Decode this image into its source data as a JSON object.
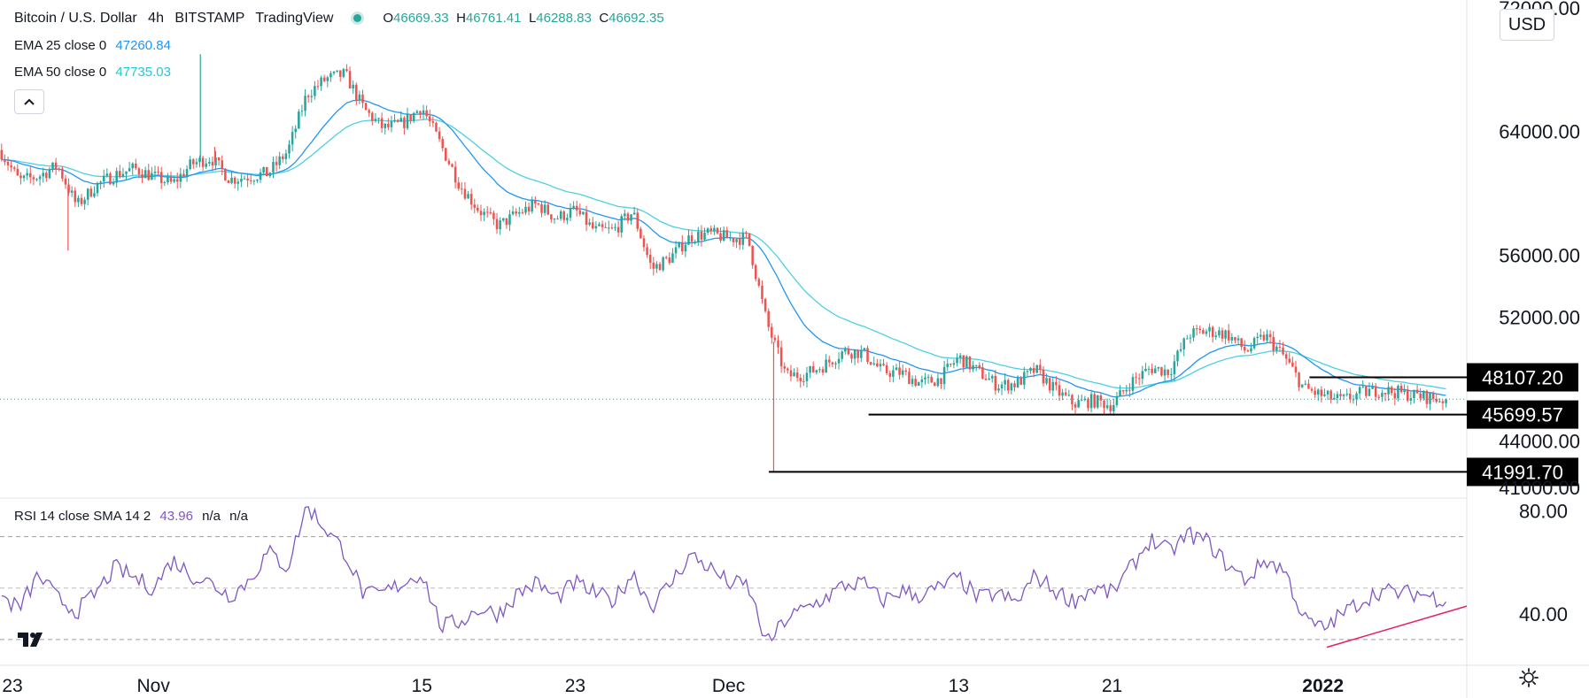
{
  "legend": {
    "pair": "Bitcoin / U.S. Dollar",
    "interval": "4h",
    "exchange": "BITSTAMP",
    "source": "TradingView",
    "open_label": "O",
    "open": "46669.33",
    "high_label": "H",
    "high": "46761.41",
    "low_label": "L",
    "low": "46288.83",
    "close_label": "C",
    "close": "46692.35",
    "ema25_label": "EMA 25 close 0",
    "ema25_value": "47260.84",
    "ema50_label": "EMA 50 close 0",
    "ema50_value": "47735.03",
    "rsi_label": "RSI 14 close SMA 14 2",
    "rsi_value": "43.96",
    "rsi_na1": "n/a",
    "rsi_na2": "n/a"
  },
  "currency_button": "USD",
  "colors": {
    "up": "#26a69a",
    "down": "#ef5350",
    "ema25": "#2196f3",
    "ema50": "#4dd0e1",
    "rsi": "#7e57c2",
    "trendline": "#e91e63",
    "level": "#000000"
  },
  "chart_data": {
    "type": "candlestick",
    "title": "Bitcoin / U.S. Dollar 4h BITSTAMP",
    "price_axis_ticks": [
      {
        "value": 72000,
        "label": "72000.00"
      },
      {
        "value": 64000,
        "label": "64000.00"
      },
      {
        "value": 56000,
        "label": "56000.00"
      },
      {
        "value": 52000,
        "label": "52000.00"
      },
      {
        "value": 44000,
        "label": "44000.00"
      },
      {
        "value": 41000,
        "label": "41000.00"
      }
    ],
    "price_range": [
      40300,
      72500
    ],
    "x_ticks": [
      {
        "day": 0,
        "label": "23"
      },
      {
        "day": 8,
        "label": "Nov"
      },
      {
        "day": 22,
        "label": "15"
      },
      {
        "day": 30,
        "label": "23"
      },
      {
        "day": 38,
        "label": "Dec"
      },
      {
        "day": 50,
        "label": "13"
      },
      {
        "day": 58,
        "label": "21"
      },
      {
        "day": 69,
        "label": "2022"
      }
    ],
    "x_range_days": [
      0,
      76.5
    ],
    "last_price": 46692.35,
    "horizontal_levels": [
      {
        "value": 48107.2,
        "label": "48107.20",
        "from_day": 68.3
      },
      {
        "value": 45699.57,
        "label": "45699.57",
        "from_day": 45.3
      },
      {
        "value": 41991.7,
        "label": "41991.70",
        "from_day": 40.1
      }
    ],
    "price_path": [
      [
        0,
        62800
      ],
      [
        1,
        60800
      ],
      [
        2,
        61100
      ],
      [
        3,
        61800
      ],
      [
        4,
        59200
      ],
      [
        5,
        60500
      ],
      [
        6,
        61200
      ],
      [
        7,
        61600
      ],
      [
        8,
        61100
      ],
      [
        9,
        60600
      ],
      [
        10,
        61900
      ],
      [
        11,
        62300
      ],
      [
        12,
        60900
      ],
      [
        13,
        61100
      ],
      [
        14,
        61300
      ],
      [
        15,
        62700
      ],
      [
        16,
        66400
      ],
      [
        17,
        67400
      ],
      [
        18,
        67700
      ],
      [
        19,
        65400
      ],
      [
        20,
        64200
      ],
      [
        21,
        64500
      ],
      [
        22,
        65600
      ],
      [
        23,
        63100
      ],
      [
        24,
        60500
      ],
      [
        25,
        58900
      ],
      [
        26,
        57900
      ],
      [
        27,
        58700
      ],
      [
        28,
        59300
      ],
      [
        29,
        58400
      ],
      [
        30,
        58900
      ],
      [
        31,
        57600
      ],
      [
        32,
        57600
      ],
      [
        33,
        58800
      ],
      [
        34,
        55100
      ],
      [
        35,
        55900
      ],
      [
        36,
        57200
      ],
      [
        37,
        57400
      ],
      [
        38,
        57100
      ],
      [
        39,
        57100
      ],
      [
        40,
        51600
      ],
      [
        41,
        48200
      ],
      [
        42,
        48300
      ],
      [
        43,
        48900
      ],
      [
        44,
        49800
      ],
      [
        45,
        49700
      ],
      [
        46,
        48500
      ],
      [
        47,
        48400
      ],
      [
        48,
        47700
      ],
      [
        49,
        48000
      ],
      [
        50,
        49400
      ],
      [
        51,
        48500
      ],
      [
        52,
        47600
      ],
      [
        53,
        47700
      ],
      [
        54,
        48600
      ],
      [
        55,
        47300
      ],
      [
        56,
        46400
      ],
      [
        57,
        46600
      ],
      [
        58,
        46300
      ],
      [
        59,
        47800
      ],
      [
        60,
        48700
      ],
      [
        61,
        48500
      ],
      [
        62,
        50900
      ],
      [
        63,
        51100
      ],
      [
        64,
        50900
      ],
      [
        65,
        49800
      ],
      [
        66,
        50800
      ],
      [
        67,
        49400
      ],
      [
        68,
        47400
      ],
      [
        69,
        46900
      ],
      [
        70,
        46600
      ],
      [
        71,
        47100
      ],
      [
        72,
        47300
      ],
      [
        73,
        47100
      ],
      [
        74,
        46900
      ],
      [
        75,
        46700
      ]
    ],
    "spikes": [
      {
        "day": 3.55,
        "low": 56300
      },
      {
        "day": 10.45,
        "high": 69000
      },
      {
        "day": 11.2,
        "low": 63000
      },
      {
        "day": 40.35,
        "low": 41967
      }
    ],
    "rsi": {
      "ticks": [
        {
          "value": 80,
          "label": "80.00"
        },
        {
          "value": 40,
          "label": "40.00"
        }
      ],
      "range": [
        20,
        85
      ],
      "bands": [
        70,
        50,
        30
      ],
      "path": [
        [
          0,
          47
        ],
        [
          1,
          42
        ],
        [
          2,
          55
        ],
        [
          3,
          46
        ],
        [
          4,
          41
        ],
        [
          5,
          48
        ],
        [
          6,
          58
        ],
        [
          7,
          54
        ],
        [
          8,
          50
        ],
        [
          9,
          61
        ],
        [
          10,
          55
        ],
        [
          11,
          52
        ],
        [
          12,
          47
        ],
        [
          13,
          53
        ],
        [
          14,
          64
        ],
        [
          15,
          58
        ],
        [
          16,
          82
        ],
        [
          17,
          73
        ],
        [
          18,
          64
        ],
        [
          19,
          47
        ],
        [
          20,
          48
        ],
        [
          21,
          52
        ],
        [
          22,
          56
        ],
        [
          23,
          35
        ],
        [
          24,
          37
        ],
        [
          25,
          42
        ],
        [
          26,
          40
        ],
        [
          27,
          48
        ],
        [
          28,
          52
        ],
        [
          29,
          46
        ],
        [
          30,
          52
        ],
        [
          31,
          48
        ],
        [
          32,
          45
        ],
        [
          33,
          56
        ],
        [
          34,
          43
        ],
        [
          35,
          52
        ],
        [
          36,
          63
        ],
        [
          37,
          58
        ],
        [
          38,
          52
        ],
        [
          39,
          51
        ],
        [
          40,
          28
        ],
        [
          41,
          38
        ],
        [
          42,
          42
        ],
        [
          43,
          46
        ],
        [
          44,
          51
        ],
        [
          45,
          52
        ],
        [
          46,
          45
        ],
        [
          47,
          49
        ],
        [
          48,
          47
        ],
        [
          49,
          50
        ],
        [
          50,
          54
        ],
        [
          51,
          46
        ],
        [
          52,
          48
        ],
        [
          53,
          44
        ],
        [
          54,
          55
        ],
        [
          55,
          49
        ],
        [
          56,
          45
        ],
        [
          57,
          50
        ],
        [
          58,
          48
        ],
        [
          59,
          58
        ],
        [
          60,
          69
        ],
        [
          61,
          64
        ],
        [
          62,
          71
        ],
        [
          63,
          68
        ],
        [
          64,
          59
        ],
        [
          65,
          53
        ],
        [
          66,
          61
        ],
        [
          67,
          57
        ],
        [
          68,
          38
        ],
        [
          69,
          34
        ],
        [
          70,
          40
        ],
        [
          71,
          45
        ],
        [
          72,
          49
        ],
        [
          73,
          48
        ],
        [
          74,
          48
        ],
        [
          75,
          46
        ]
      ],
      "trendline": [
        [
          69.2,
          27
        ],
        [
          76.5,
          43
        ]
      ]
    }
  }
}
